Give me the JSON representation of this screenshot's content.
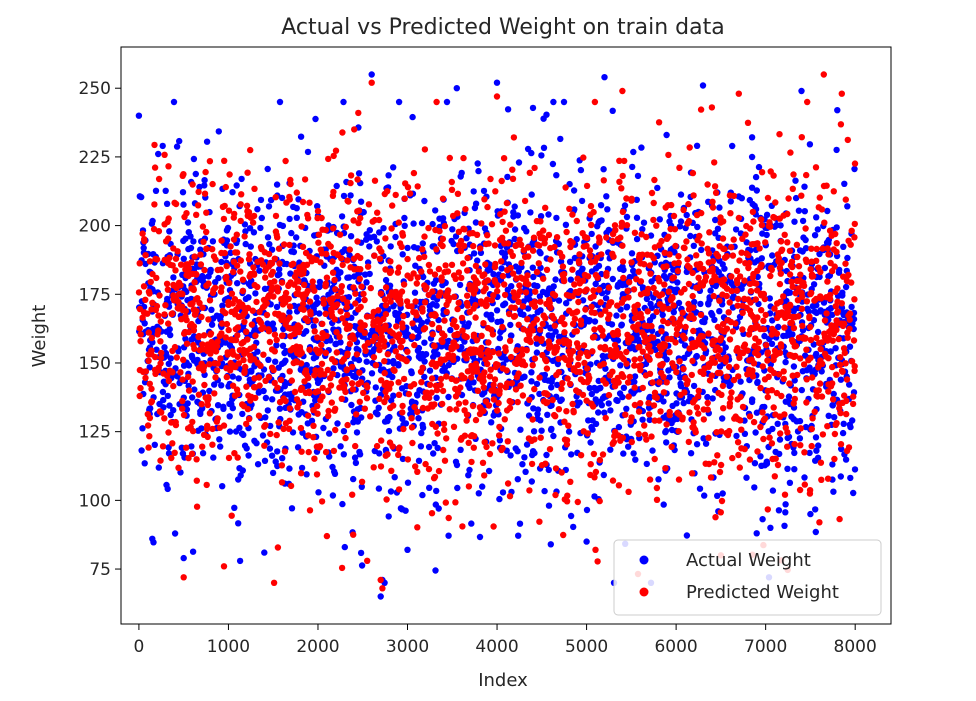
{
  "chart_data": {
    "type": "scatter",
    "title": "Actual vs Predicted Weight on train data",
    "xlabel": "Index",
    "ylabel": "Weight",
    "xlim": [
      -200,
      8400
    ],
    "ylim": [
      55,
      265
    ],
    "xticks": [
      0,
      1000,
      2000,
      3000,
      4000,
      5000,
      6000,
      7000,
      8000
    ],
    "yticks": [
      75,
      100,
      125,
      150,
      175,
      200,
      225,
      250
    ],
    "legend_position": "bottom-right",
    "grid": false,
    "series": [
      {
        "name": "Actual Weight",
        "color": "#0000ff",
        "n_points": 8000,
        "x": [
          0,
          2600,
          2700,
          2720,
          4000,
          3550,
          5200,
          6300,
          7400,
          7800,
          150,
          500,
          1400,
          2300,
          3000,
          4600,
          5000,
          6900,
          7500
        ],
        "y": [
          240,
          255,
          65,
          71,
          252,
          250,
          254,
          251,
          249,
          242,
          86,
          79,
          81,
          83,
          82,
          84,
          85,
          88,
          95
        ]
      },
      {
        "name": "Predicted Weight",
        "color": "#ff0000",
        "n_points": 8000,
        "x": [
          2600,
          2450,
          2700,
          2720,
          4000,
          5400,
          6400,
          6700,
          7650,
          7850,
          500,
          950,
          2100,
          2550,
          5100,
          6500,
          7600
        ],
        "y": [
          252,
          241,
          71,
          68,
          247,
          249,
          243,
          248,
          255,
          248,
          72,
          76,
          87,
          78,
          82,
          80,
          92
        ]
      }
    ]
  }
}
